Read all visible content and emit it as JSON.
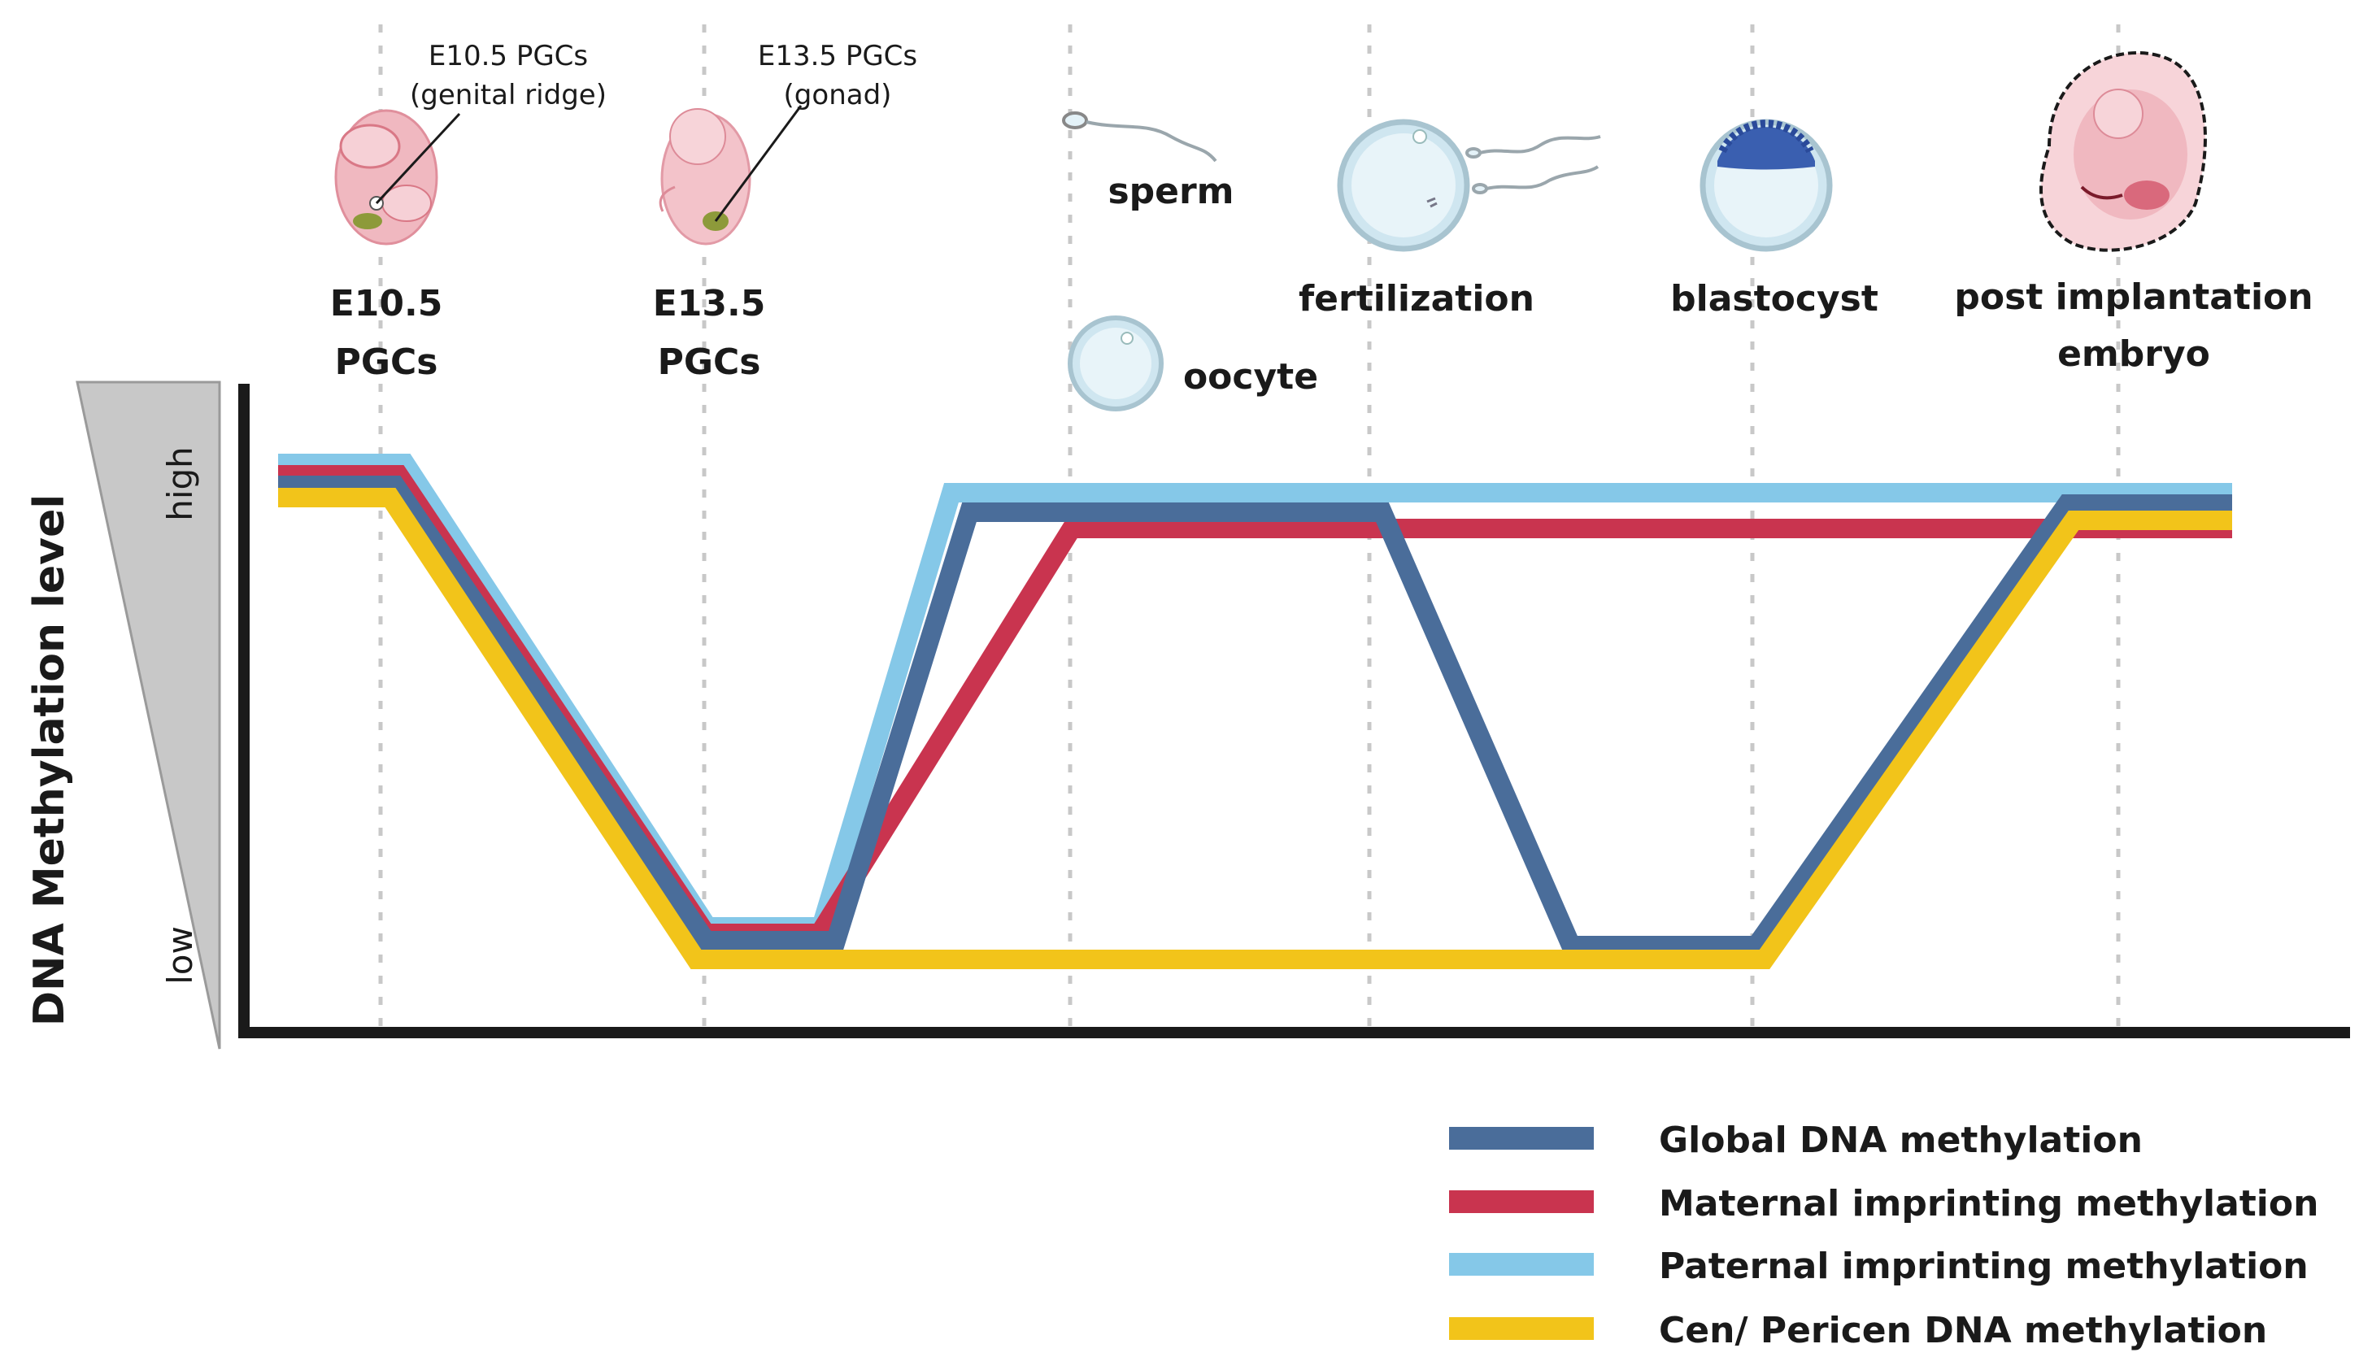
{
  "stages": {
    "e105_line1": "E10.5",
    "e105_line2": "PGCs",
    "e135_line1": "E13.5",
    "e135_line2": "PGCs",
    "sperm": "sperm",
    "oocyte": "oocyte",
    "fertilization": "fertilization",
    "blastocyst": "blastocyst",
    "post_line1": "post implantation",
    "post_line2": "embryo"
  },
  "callouts": {
    "e105_line1": "E10.5 PGCs",
    "e105_line2": "(genital ridge)",
    "e135_line1": "E13.5 PGCs",
    "e135_line2": "(gonad)"
  },
  "axis": {
    "ylabel": "DNA Methylation level",
    "high": "high",
    "low": "low"
  },
  "legend": [
    {
      "label": "Global DNA methylation",
      "color": "#4a6d9a"
    },
    {
      "label": "Maternal imprinting methylation",
      "color": "#c9344f"
    },
    {
      "label": "Paternal imprinting methylation",
      "color": "#85c8e8"
    },
    {
      "label": "Cen/ Pericen DNA methylation",
      "color": "#f2c41a"
    }
  ],
  "colors": {
    "axis": "#1a1a1a",
    "wedge": "#c8c8c8",
    "embryo_pink": "#f0b8c0",
    "cell_fill": "#e4f2f8",
    "cell_stroke": "#a8c4d0",
    "dashed_guides": "#c8c8c8",
    "blastocyst_icm": "#3a5fb0"
  }
}
